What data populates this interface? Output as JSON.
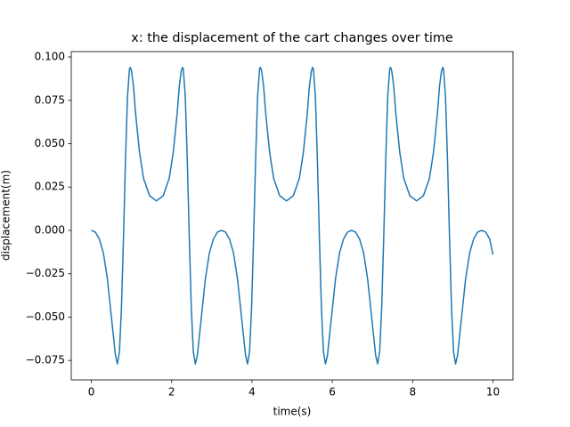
{
  "chart_data": {
    "type": "line",
    "title": "x: the displacement of the cart changes over time",
    "x_label": "time(s)",
    "y_label": "displacement(m)",
    "x": [
      0,
      0.1,
      0.2,
      0.3,
      0.4,
      0.5,
      0.6,
      0.65,
      0.7,
      0.75,
      0.8,
      0.85,
      0.9,
      0.95,
      0.97,
      1.0,
      1.05,
      1.1,
      1.2,
      1.3,
      1.45,
      1.62,
      1.79,
      1.94,
      2.04,
      2.14,
      2.19,
      2.24,
      2.27,
      2.29,
      2.34,
      2.39,
      2.44,
      2.49,
      2.54,
      2.59,
      2.64,
      2.74,
      2.84,
      2.94,
      3.04,
      3.14,
      3.24,
      3.34,
      3.44,
      3.54,
      3.64,
      3.74,
      3.84,
      3.89,
      3.94,
      3.99,
      4.04,
      4.09,
      4.14,
      4.19,
      4.21,
      4.24,
      4.29,
      4.34,
      4.44,
      4.54,
      4.69,
      4.86,
      5.03,
      5.18,
      5.28,
      5.38,
      5.43,
      5.48,
      5.51,
      5.53,
      5.58,
      5.63,
      5.68,
      5.73,
      5.78,
      5.83,
      5.88,
      5.98,
      6.08,
      6.18,
      6.28,
      6.38,
      6.48,
      6.58,
      6.68,
      6.78,
      6.88,
      6.98,
      7.08,
      7.13,
      7.18,
      7.23,
      7.28,
      7.33,
      7.38,
      7.43,
      7.45,
      7.48,
      7.53,
      7.58,
      7.68,
      7.78,
      7.93,
      8.1,
      8.27,
      8.42,
      8.52,
      8.62,
      8.67,
      8.72,
      8.75,
      8.77,
      8.82,
      8.87,
      8.92,
      8.97,
      9.02,
      9.07,
      9.12,
      9.22,
      9.32,
      9.42,
      9.52,
      9.62,
      9.72,
      9.82,
      9.92,
      10
    ],
    "series": [
      {
        "color": "#1f77b4",
        "values": [
          0,
          -0.001,
          -0.005,
          -0.013,
          -0.028,
          -0.05,
          -0.072,
          -0.077,
          -0.07,
          -0.045,
          -0.005,
          0.04,
          0.077,
          0.093,
          0.094,
          0.092,
          0.083,
          0.068,
          0.045,
          0.03,
          0.02,
          0.017,
          0.02,
          0.03,
          0.045,
          0.068,
          0.083,
          0.092,
          0.094,
          0.093,
          0.077,
          0.04,
          -0.005,
          -0.045,
          -0.07,
          -0.077,
          -0.072,
          -0.05,
          -0.028,
          -0.013,
          -0.005,
          -0.001,
          0,
          -0.001,
          -0.005,
          -0.013,
          -0.028,
          -0.05,
          -0.072,
          -0.077,
          -0.07,
          -0.045,
          -0.005,
          0.04,
          0.077,
          0.093,
          0.094,
          0.092,
          0.083,
          0.068,
          0.045,
          0.03,
          0.02,
          0.017,
          0.02,
          0.03,
          0.045,
          0.068,
          0.083,
          0.092,
          0.094,
          0.093,
          0.077,
          0.04,
          -0.005,
          -0.045,
          -0.07,
          -0.077,
          -0.072,
          -0.05,
          -0.028,
          -0.013,
          -0.005,
          -0.001,
          0,
          -0.001,
          -0.005,
          -0.013,
          -0.028,
          -0.05,
          -0.072,
          -0.077,
          -0.07,
          -0.045,
          -0.005,
          0.04,
          0.077,
          0.093,
          0.094,
          0.092,
          0.083,
          0.068,
          0.045,
          0.03,
          0.02,
          0.017,
          0.02,
          0.03,
          0.045,
          0.068,
          0.083,
          0.092,
          0.094,
          0.093,
          0.077,
          0.04,
          -0.005,
          -0.045,
          -0.07,
          -0.077,
          -0.072,
          -0.05,
          -0.028,
          -0.013,
          -0.005,
          -0.001,
          0,
          -0.001,
          -0.005,
          -0.014
        ]
      }
    ],
    "xlim": [
      -0.5,
      10.5
    ],
    "ylim": [
      -0.0862,
      0.1031
    ],
    "xticks": [
      0,
      2,
      4,
      6,
      8,
      10
    ],
    "yticks": [
      {
        "value": -0.075,
        "label": "−0.075"
      },
      {
        "value": -0.05,
        "label": "−0.050"
      },
      {
        "value": -0.025,
        "label": "−0.025"
      },
      {
        "value": 0,
        "label": "0.000"
      },
      {
        "value": 0.025,
        "label": "0.025"
      },
      {
        "value": 0.05,
        "label": "0.050"
      },
      {
        "value": 0.075,
        "label": "0.075"
      },
      {
        "value": 0.1,
        "label": "0.100"
      }
    ]
  }
}
